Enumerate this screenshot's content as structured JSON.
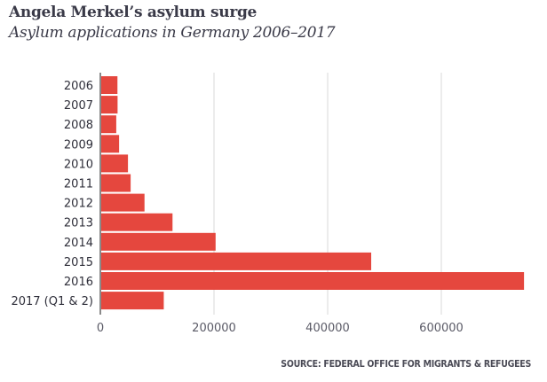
{
  "chart_data": {
    "type": "bar",
    "orientation": "horizontal",
    "title": "Angela Merkel’s asylum surge",
    "subtitle": "Asylum applications in Germany 2006–2017",
    "source": "SOURCE: FEDERAL OFFICE FOR MIGRANTS & REFUGEES",
    "categories": [
      "2006",
      "2007",
      "2008",
      "2009",
      "2010",
      "2011",
      "2012",
      "2013",
      "2014",
      "2015",
      "2016",
      "2017 (Q1 & 2)"
    ],
    "values": [
      30100,
      30300,
      28000,
      33000,
      48600,
      53300,
      77700,
      127000,
      202800,
      476600,
      745500,
      111600
    ],
    "xlabel": "",
    "ylabel": "",
    "xlim": [
      0,
      750000
    ],
    "xticks": [
      0,
      200000,
      400000,
      600000
    ],
    "xtick_labels": [
      "0",
      "200000",
      "400000",
      "600000"
    ],
    "grid": "vertical",
    "legend": "none",
    "bar_color": "#e5473e"
  }
}
